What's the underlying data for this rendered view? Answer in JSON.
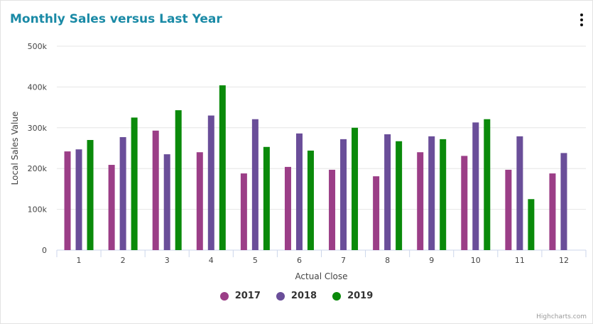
{
  "title": "Monthly Sales versus Last Year",
  "credits": "Highcharts.com",
  "menu_icon": "kebab-menu-icon",
  "colors": {
    "title": "#1a8aa6",
    "2017": "#9b3e87",
    "2018": "#6a4e99",
    "2019": "#0a8a0a"
  },
  "chart_data": {
    "type": "bar",
    "xlabel": "Actual Close",
    "ylabel": "Local Sales Value",
    "categories": [
      "1",
      "2",
      "3",
      "4",
      "5",
      "6",
      "7",
      "8",
      "9",
      "10",
      "11",
      "12"
    ],
    "ylim": [
      0,
      500000
    ],
    "yticks": [
      0,
      100000,
      200000,
      300000,
      400000,
      500000
    ],
    "ytick_labels": [
      "0",
      "100k",
      "200k",
      "300k",
      "400k",
      "500k"
    ],
    "grid": true,
    "legend_position": "bottom-center",
    "series": [
      {
        "name": "2017",
        "color": "#9b3e87",
        "values": [
          242000,
          209000,
          293000,
          240000,
          188000,
          204000,
          197000,
          181000,
          240000,
          231000,
          197000,
          188000
        ]
      },
      {
        "name": "2018",
        "color": "#6a4e99",
        "values": [
          247000,
          277000,
          235000,
          330000,
          321000,
          286000,
          272000,
          284000,
          279000,
          313000,
          279000,
          238000
        ]
      },
      {
        "name": "2019",
        "color": "#0a8a0a",
        "values": [
          270000,
          325000,
          343000,
          404000,
          253000,
          244000,
          300000,
          267000,
          272000,
          321000,
          125000,
          null
        ]
      }
    ]
  }
}
